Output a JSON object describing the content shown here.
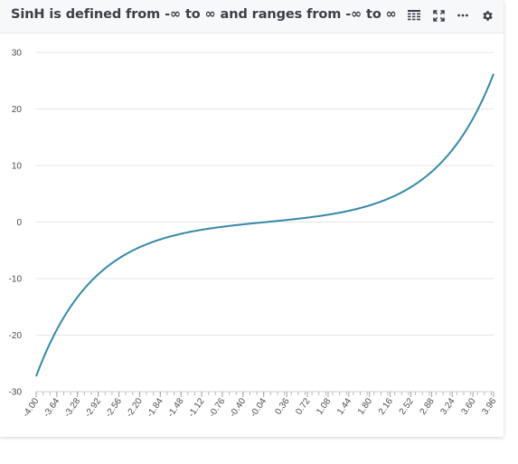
{
  "header": {
    "title": "SinH is defined from -∞ to ∞ and ranges from -∞ to ∞",
    "tools": [
      {
        "name": "table-view-icon"
      },
      {
        "name": "fullscreen-icon"
      },
      {
        "name": "more-options-icon"
      },
      {
        "name": "settings-gear-icon"
      }
    ]
  },
  "colors": {
    "line": "#3589a9",
    "grid": "#e3e5e8",
    "axis_text": "#4a4d55",
    "title": "#3c3f47"
  },
  "chart_data": {
    "type": "line",
    "title": "SinH is defined from -∞ to ∞ and ranges from -∞ to ∞",
    "xlabel": "",
    "ylabel": "",
    "function": "sinh(x)",
    "xlim": [
      -4.0,
      3.96
    ],
    "ylim": [
      -30,
      30
    ],
    "grid": "horizontal",
    "legend": "none",
    "y_ticks": [
      30,
      20,
      10,
      0,
      -10,
      -20,
      -30
    ],
    "x_tick_labels": [
      "-4.00",
      "-3.64",
      "-3.28",
      "-2.92",
      "-2.56",
      "-2.20",
      "-1.84",
      "-1.48",
      "-1.12",
      "-0.76",
      "-0.40",
      "-0.04",
      "0.36",
      "0.72",
      "1.08",
      "1.44",
      "1.80",
      "2.16",
      "2.52",
      "2.88",
      "3.24",
      "3.60",
      "3.96"
    ],
    "series": [
      {
        "x": [
          -4.0,
          -3.64,
          -3.28,
          -2.92,
          -2.56,
          -2.2,
          -1.84,
          -1.48,
          -1.12,
          -0.76,
          -0.4,
          -0.04,
          0.36,
          0.72,
          1.08,
          1.44,
          1.8,
          2.16,
          2.52,
          2.88,
          3.24,
          3.6,
          3.96
        ],
        "y": [
          -27.29,
          -19.04,
          -13.27,
          -9.25,
          -6.43,
          -4.46,
          -3.07,
          -2.08,
          -1.37,
          -0.84,
          -0.41,
          -0.04,
          0.37,
          0.78,
          1.3,
          1.99,
          2.94,
          4.28,
          6.17,
          8.88,
          12.74,
          18.29,
          26.21
        ]
      }
    ]
  }
}
